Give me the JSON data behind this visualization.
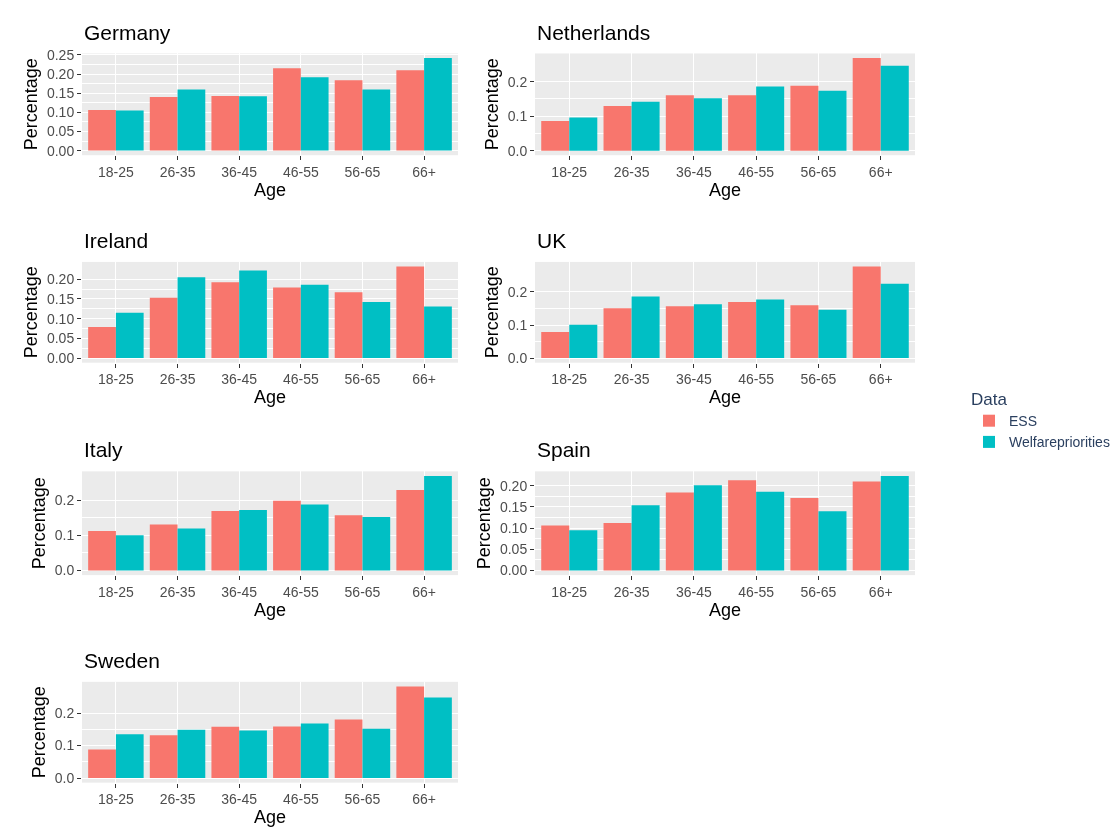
{
  "chart_data": [
    {
      "type": "bar",
      "title": "Germany",
      "xlabel": "Age",
      "ylabel": "Percentage",
      "legend_title": "Data",
      "legend": "right",
      "grid": true,
      "categories": [
        "18-25",
        "26-35",
        "36-45",
        "46-55",
        "56-65",
        "66+"
      ],
      "ylim": [
        -0.012,
        0.254
      ],
      "yticks": [
        {
          "value": 0,
          "label": "0.00"
        },
        0.05,
        {
          "value": 0.1,
          "label": "0.10"
        },
        0.15,
        {
          "value": 0.2,
          "label": "0.20"
        },
        0.25
      ],
      "series": [
        {
          "name": "ESS",
          "color": "#f8766d",
          "values": [
            0.106,
            0.14,
            0.143,
            0.215,
            0.184,
            0.21
          ]
        },
        {
          "name": "Welfarepriorities",
          "color": "#00bfc4",
          "values": [
            0.105,
            0.16,
            0.142,
            0.192,
            0.16,
            0.242
          ]
        }
      ]
    },
    {
      "type": "bar",
      "title": "Netherlands",
      "xlabel": "Age",
      "ylabel": "Percentage",
      "grid": true,
      "categories": [
        "18-25",
        "26-35",
        "36-45",
        "46-55",
        "56-65",
        "66+"
      ],
      "ylim": [
        -0.013,
        0.282
      ],
      "yticks": [
        {
          "value": 0,
          "label": "0.0"
        },
        0.1,
        0.2
      ],
      "series": [
        {
          "color": "#f8766d",
          "values": [
            0.086,
            0.13,
            0.161,
            0.161,
            0.188,
            0.269
          ]
        },
        {
          "color": "#00bfc4",
          "values": [
            0.096,
            0.142,
            0.152,
            0.186,
            0.174,
            0.246
          ]
        }
      ]
    },
    {
      "type": "bar",
      "title": "Ireland",
      "xlabel": "Age",
      "ylabel": "Percentage",
      "grid": true,
      "categories": [
        "18-25",
        "26-35",
        "36-45",
        "46-55",
        "56-65",
        "66+"
      ],
      "ylim": [
        -0.0116,
        0.2436
      ],
      "yticks": [
        {
          "value": 0,
          "label": "0.00"
        },
        0.05,
        {
          "value": 0.1,
          "label": "0.10"
        },
        0.15,
        {
          "value": 0.2,
          "label": "0.20"
        }
      ],
      "series": [
        {
          "color": "#f8766d",
          "values": [
            0.079,
            0.153,
            0.192,
            0.179,
            0.167,
            0.232
          ]
        },
        {
          "color": "#00bfc4",
          "values": [
            0.115,
            0.205,
            0.222,
            0.186,
            0.142,
            0.131
          ]
        }
      ]
    },
    {
      "type": "bar",
      "title": "UK",
      "xlabel": "Age",
      "ylabel": "Percentage",
      "grid": true,
      "categories": [
        "18-25",
        "26-35",
        "36-45",
        "46-55",
        "56-65",
        "66+"
      ],
      "ylim": [
        -0.014,
        0.291
      ],
      "yticks": [
        {
          "value": 0,
          "label": "0.0"
        },
        0.1,
        0.2
      ],
      "series": [
        {
          "color": "#f8766d",
          "values": [
            0.079,
            0.151,
            0.157,
            0.17,
            0.16,
            0.277
          ]
        },
        {
          "color": "#00bfc4",
          "values": [
            0.101,
            0.186,
            0.163,
            0.177,
            0.146,
            0.225
          ]
        }
      ]
    },
    {
      "type": "bar",
      "title": "Italy",
      "xlabel": "Age",
      "ylabel": "Percentage",
      "grid": true,
      "categories": [
        "18-25",
        "26-35",
        "36-45",
        "46-55",
        "56-65",
        "66+"
      ],
      "ylim": [
        -0.0135,
        0.282
      ],
      "yticks": [
        {
          "value": 0,
          "label": "0.0"
        },
        0.1,
        0.2
      ],
      "series": [
        {
          "color": "#f8766d",
          "values": [
            0.112,
            0.131,
            0.169,
            0.198,
            0.157,
            0.229
          ]
        },
        {
          "color": "#00bfc4",
          "values": [
            0.1,
            0.119,
            0.172,
            0.188,
            0.152,
            0.269
          ]
        }
      ]
    },
    {
      "type": "bar",
      "title": "Spain",
      "xlabel": "Age",
      "ylabel": "Percentage",
      "grid": true,
      "categories": [
        "18-25",
        "26-35",
        "36-45",
        "46-55",
        "56-65",
        "66+"
      ],
      "ylim": [
        -0.011,
        0.234
      ],
      "yticks": [
        {
          "value": 0,
          "label": "0.00"
        },
        0.05,
        {
          "value": 0.1,
          "label": "0.10"
        },
        0.15,
        {
          "value": 0.2,
          "label": "0.20"
        }
      ],
      "series": [
        {
          "color": "#f8766d",
          "values": [
            0.106,
            0.112,
            0.184,
            0.213,
            0.171,
            0.21
          ]
        },
        {
          "color": "#00bfc4",
          "values": [
            0.095,
            0.154,
            0.201,
            0.186,
            0.14,
            0.223
          ]
        }
      ]
    },
    {
      "type": "bar",
      "title": "Sweden",
      "xlabel": "Age",
      "ylabel": "Percentage",
      "grid": true,
      "categories": [
        "18-25",
        "26-35",
        "36-45",
        "46-55",
        "56-65",
        "66+"
      ],
      "ylim": [
        -0.014,
        0.296
      ],
      "yticks": [
        {
          "value": 0,
          "label": "0.0"
        },
        0.1,
        0.2
      ],
      "series": [
        {
          "color": "#f8766d",
          "values": [
            0.088,
            0.132,
            0.158,
            0.159,
            0.18,
            0.282
          ]
        },
        {
          "color": "#00bfc4",
          "values": [
            0.135,
            0.149,
            0.146,
            0.168,
            0.152,
            0.248
          ]
        }
      ]
    }
  ]
}
